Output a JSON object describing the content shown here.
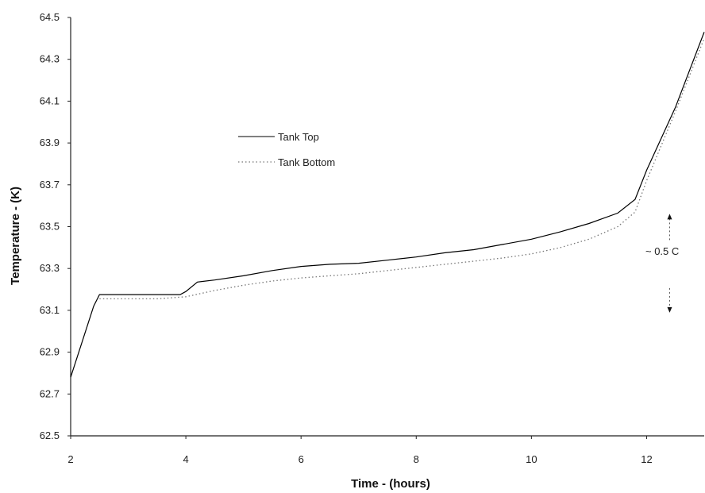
{
  "chart_data": {
    "type": "line",
    "title": "",
    "xlabel": "Time - (hours)",
    "ylabel": "Temperature - (K)",
    "xlim": [
      2,
      13
    ],
    "ylim": [
      62.5,
      64.5
    ],
    "x_ticks": [
      2,
      4,
      6,
      8,
      10,
      12
    ],
    "y_ticks": [
      "62.5",
      "62.7",
      "62.9",
      "63.1",
      "63.3",
      "63.5",
      "63.7",
      "63.9",
      "64.1",
      "64.3",
      "64.5"
    ],
    "grid": false,
    "legend_position": "upper-left-center",
    "series": [
      {
        "name": "Tank Top",
        "style": "solid",
        "color": "#000000",
        "points": [
          [
            2.0,
            62.78
          ],
          [
            2.2,
            62.95
          ],
          [
            2.4,
            63.12
          ],
          [
            2.5,
            63.175
          ],
          [
            3.0,
            63.175
          ],
          [
            3.5,
            63.175
          ],
          [
            3.9,
            63.175
          ],
          [
            4.0,
            63.19
          ],
          [
            4.2,
            63.235
          ],
          [
            4.5,
            63.245
          ],
          [
            5.0,
            63.265
          ],
          [
            5.5,
            63.29
          ],
          [
            6.0,
            63.31
          ],
          [
            6.5,
            63.32
          ],
          [
            7.0,
            63.325
          ],
          [
            7.5,
            63.34
          ],
          [
            8.0,
            63.355
          ],
          [
            8.5,
            63.375
          ],
          [
            9.0,
            63.39
          ],
          [
            9.5,
            63.415
          ],
          [
            10.0,
            63.44
          ],
          [
            10.5,
            63.475
          ],
          [
            11.0,
            63.515
          ],
          [
            11.5,
            63.565
          ],
          [
            11.8,
            63.63
          ],
          [
            12.0,
            63.77
          ],
          [
            12.5,
            64.07
          ],
          [
            13.0,
            64.43
          ]
        ]
      },
      {
        "name": "Tank Bottom",
        "style": "dotted",
        "color": "#777777",
        "points": [
          [
            2.5,
            63.155
          ],
          [
            3.0,
            63.155
          ],
          [
            3.5,
            63.155
          ],
          [
            4.0,
            63.165
          ],
          [
            4.5,
            63.195
          ],
          [
            5.0,
            63.22
          ],
          [
            5.5,
            63.24
          ],
          [
            6.0,
            63.255
          ],
          [
            6.5,
            63.265
          ],
          [
            7.0,
            63.275
          ],
          [
            7.5,
            63.29
          ],
          [
            8.0,
            63.305
          ],
          [
            8.5,
            63.32
          ],
          [
            9.0,
            63.335
          ],
          [
            9.5,
            63.35
          ],
          [
            10.0,
            63.37
          ],
          [
            10.5,
            63.4
          ],
          [
            11.0,
            63.44
          ],
          [
            11.5,
            63.5
          ],
          [
            11.8,
            63.57
          ],
          [
            12.0,
            63.72
          ],
          [
            12.5,
            64.05
          ],
          [
            13.0,
            64.4
          ]
        ]
      }
    ],
    "annotation": {
      "text": "~ 0.5 C",
      "x": 12.4,
      "y_from": 63.1,
      "y_to": 63.55
    }
  }
}
